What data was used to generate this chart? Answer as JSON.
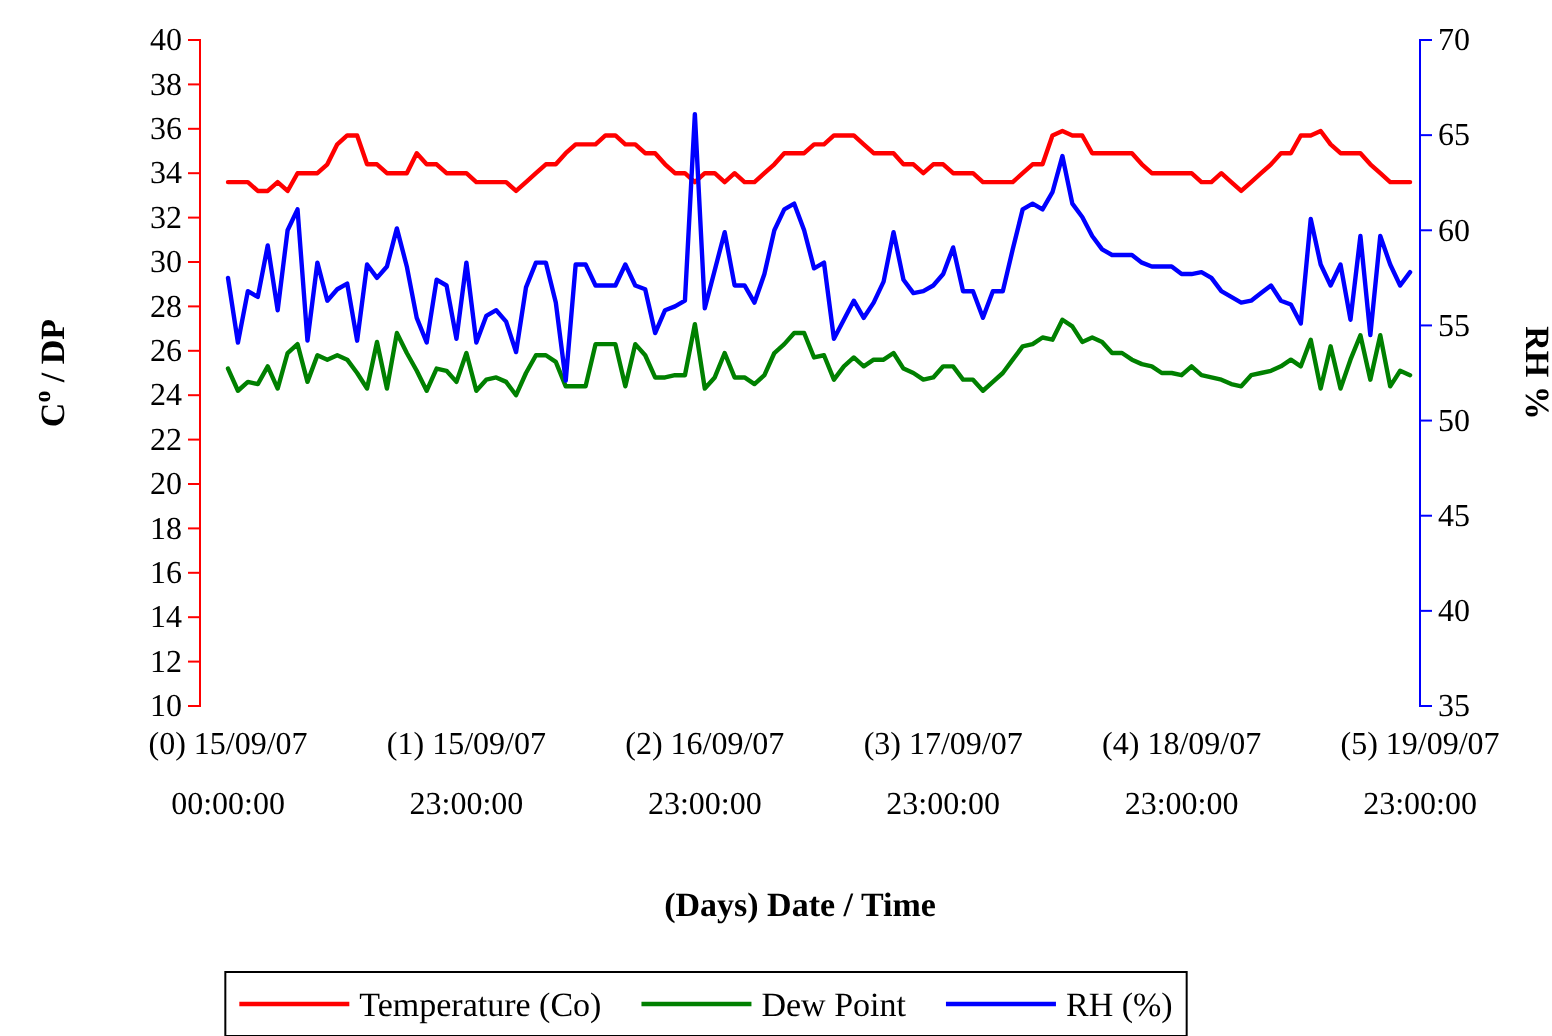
{
  "chart_data": {
    "type": "line",
    "xlabel": "(Days) Date / Time",
    "ylabel": "C$^{o}$  /  DP",
    "y2label": "RH %",
    "categories": [
      "(0) 15/09/07\n00:00:00",
      null,
      null,
      null,
      null,
      null,
      null,
      null,
      null,
      null,
      null,
      null,
      null,
      null,
      null,
      null,
      null,
      null,
      null,
      null,
      null,
      null,
      null,
      null,
      "(1) 15/09/07\n23:00:00",
      null,
      null,
      null,
      null,
      null,
      null,
      null,
      null,
      null,
      null,
      null,
      null,
      null,
      null,
      null,
      null,
      null,
      null,
      null,
      null,
      null,
      null,
      null,
      "(2) 16/09/07\n23:00:00",
      null,
      null,
      null,
      null,
      null,
      null,
      null,
      null,
      null,
      null,
      null,
      null,
      null,
      null,
      null,
      null,
      null,
      null,
      null,
      null,
      null,
      null,
      null,
      "(3) 17/09/07\n23:00:00",
      null,
      null,
      null,
      null,
      null,
      null,
      null,
      null,
      null,
      null,
      null,
      null,
      null,
      null,
      null,
      null,
      null,
      null,
      null,
      null,
      null,
      null,
      null,
      "(4) 18/09/07\n23:00:00",
      null,
      null,
      null,
      null,
      null,
      null,
      null,
      null,
      null,
      null,
      null,
      null,
      null,
      null,
      null,
      null,
      null,
      null,
      null,
      null,
      null,
      null,
      null,
      "(5) 19/09/07\n23:00:00"
    ],
    "ylim": [
      10,
      40
    ],
    "yticks": [
      10,
      12,
      14,
      16,
      18,
      20,
      22,
      24,
      26,
      28,
      30,
      32,
      34,
      36,
      38,
      40
    ],
    "y2lim": [
      35,
      70
    ],
    "y2ticks": [
      35,
      40,
      45,
      50,
      55,
      60,
      65,
      70
    ],
    "legend": "bottom",
    "series": [
      {
        "name": "Temperature (Co)",
        "color": "#ff0000",
        "values": [
          33.6,
          33.6,
          33.6,
          33.2,
          33.2,
          33.6,
          33.2,
          34.0,
          34.0,
          34.0,
          34.4,
          35.3,
          35.7,
          35.7,
          34.4,
          34.4,
          34.0,
          34.0,
          34.0,
          34.9,
          34.4,
          34.4,
          34.0,
          34.0,
          34.0,
          33.6,
          33.6,
          33.6,
          33.6,
          33.2,
          33.6,
          34.0,
          34.4,
          34.4,
          34.9,
          35.3,
          35.3,
          35.3,
          35.7,
          35.7,
          35.3,
          35.3,
          34.9,
          34.9,
          34.4,
          34.0,
          34.0,
          33.6,
          34.0,
          34.0,
          33.6,
          34.0,
          33.6,
          33.6,
          34.0,
          34.4,
          34.9,
          34.9,
          34.9,
          35.3,
          35.3,
          35.7,
          35.7,
          35.7,
          35.3,
          34.9,
          34.9,
          34.9,
          34.4,
          34.4,
          34.0,
          34.4,
          34.4,
          34.0,
          34.0,
          34.0,
          33.6,
          33.6,
          33.6,
          33.6,
          34.0,
          34.4,
          34.4,
          35.7,
          35.9,
          35.7,
          35.7,
          34.9,
          34.9,
          34.9,
          34.9,
          34.9,
          34.4,
          34.0,
          34.0,
          34.0,
          34.0,
          34.0,
          33.6,
          33.6,
          34.0,
          33.6,
          33.2,
          33.6,
          34.0,
          34.4,
          34.9,
          34.9,
          35.7,
          35.7,
          35.9,
          35.3,
          34.9,
          34.9,
          34.9,
          34.4,
          34.0,
          33.6,
          33.6,
          33.6,
          null
        ]
      },
      {
        "name": "Dew Point",
        "color": "#008000",
        "values": [
          25.2,
          24.2,
          24.6,
          24.5,
          25.3,
          24.3,
          25.9,
          26.3,
          24.6,
          25.8,
          25.6,
          25.8,
          25.6,
          25.0,
          24.3,
          26.4,
          24.3,
          26.8,
          25.9,
          25.1,
          24.2,
          25.2,
          25.1,
          24.6,
          25.9,
          24.2,
          24.7,
          24.8,
          24.6,
          24.0,
          25.0,
          25.8,
          25.8,
          25.5,
          24.4,
          24.4,
          24.4,
          26.3,
          26.3,
          26.3,
          24.4,
          26.3,
          25.8,
          24.8,
          24.8,
          24.9,
          24.9,
          27.2,
          24.3,
          24.8,
          25.9,
          24.8,
          24.8,
          24.5,
          24.9,
          25.9,
          26.3,
          26.8,
          26.8,
          25.7,
          25.8,
          24.7,
          25.3,
          25.7,
          25.3,
          25.6,
          25.6,
          25.9,
          25.2,
          25.0,
          24.7,
          24.8,
          25.3,
          25.3,
          24.7,
          24.7,
          24.2,
          24.6,
          25.0,
          25.6,
          26.2,
          26.3,
          26.6,
          26.5,
          27.4,
          27.1,
          26.4,
          26.6,
          26.4,
          25.9,
          25.9,
          25.6,
          25.4,
          25.3,
          25.0,
          25.0,
          24.9,
          25.3,
          24.9,
          24.8,
          24.7,
          24.5,
          24.4,
          24.9,
          25.0,
          25.1,
          25.3,
          25.6,
          25.3,
          26.5,
          24.3,
          26.2,
          24.3,
          25.6,
          26.7,
          24.7,
          26.7,
          24.4,
          25.1,
          24.9,
          null
        ]
      },
      {
        "name": "RH (%)",
        "color": "#0000ff",
        "axis": "y2",
        "values": [
          57.5,
          54.1,
          56.8,
          56.5,
          59.2,
          55.8,
          60.0,
          61.1,
          54.2,
          58.3,
          56.3,
          56.9,
          57.2,
          54.2,
          58.2,
          57.5,
          58.1,
          60.1,
          58.1,
          55.4,
          54.1,
          57.4,
          57.1,
          54.3,
          58.3,
          54.1,
          55.5,
          55.8,
          55.2,
          53.6,
          57.0,
          58.3,
          58.3,
          56.2,
          52.1,
          58.2,
          58.2,
          57.1,
          57.1,
          57.1,
          58.2,
          57.1,
          56.9,
          54.6,
          55.8,
          56.0,
          56.3,
          66.1,
          55.9,
          57.9,
          59.9,
          57.1,
          57.1,
          56.2,
          57.7,
          60.0,
          61.1,
          61.4,
          60.0,
          58.0,
          58.3,
          54.3,
          55.3,
          56.3,
          55.4,
          56.2,
          57.3,
          59.9,
          57.4,
          56.7,
          56.8,
          57.1,
          57.7,
          59.1,
          56.8,
          56.8,
          55.4,
          56.8,
          56.8,
          59.0,
          61.1,
          61.4,
          61.1,
          62.0,
          63.9,
          61.4,
          60.7,
          59.7,
          59.0,
          58.7,
          58.7,
          58.7,
          58.3,
          58.1,
          58.1,
          58.1,
          57.7,
          57.7,
          57.8,
          57.5,
          56.8,
          56.5,
          56.2,
          56.3,
          56.7,
          57.1,
          56.3,
          56.1,
          55.1,
          60.6,
          58.2,
          57.1,
          58.2,
          55.3,
          59.7,
          54.5,
          59.7,
          58.2,
          57.1,
          57.8,
          null
        ]
      }
    ]
  }
}
